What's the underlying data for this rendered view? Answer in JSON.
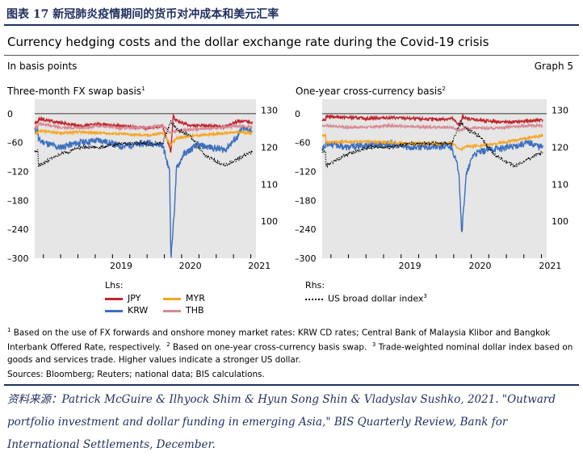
{
  "header": {
    "cn_title": "图表 17   新冠肺炎疫情期间的货币对冲成本和美元汇率",
    "main_title": "Currency hedging costs and the dollar exchange rate during the Covid-19 crisis",
    "units": "In basis points",
    "graph_no": "Graph 5"
  },
  "colors": {
    "JPY": "#c0262d",
    "KRW": "#3c6fbf",
    "MYR": "#f5a623",
    "THB": "#d88a96",
    "USD": "#000000",
    "panel_bg": "#e6e6e6",
    "title_navy": "#1f2f5e"
  },
  "chart_data": [
    {
      "type": "line",
      "title": "Three-month FX swap basis",
      "title_sup": "1",
      "x_axis": {
        "tick_labels": [
          "2019",
          "2020",
          "2021"
        ],
        "range": [
          "2018-03",
          "2021-06"
        ]
      },
      "y_left": {
        "ticks": [
          0,
          -60,
          -120,
          -180,
          -240,
          -300
        ],
        "tick_labels": [
          "0",
          "–60",
          "–120",
          "–180",
          "–240",
          "–300"
        ],
        "range": [
          -300,
          30
        ]
      },
      "y_right": {
        "ticks": [
          130,
          120,
          110,
          100
        ],
        "tick_labels": [
          "130",
          "120",
          "110",
          "100"
        ],
        "range": [
          90,
          133
        ]
      },
      "series": [
        {
          "name": "KRW",
          "axis": "left",
          "color": "#3c6fbf",
          "anchors": [
            [
              2018.3,
              -55
            ],
            [
              2018.6,
              -70
            ],
            [
              2018.9,
              -60
            ],
            [
              2019.2,
              -55
            ],
            [
              2019.5,
              -68
            ],
            [
              2019.9,
              -60
            ],
            [
              2020.1,
              -65
            ],
            [
              2020.2,
              -120
            ],
            [
              2020.22,
              -300
            ],
            [
              2020.27,
              -200
            ],
            [
              2020.3,
              -115
            ],
            [
              2020.4,
              -85
            ],
            [
              2020.6,
              -65
            ],
            [
              2020.8,
              -70
            ],
            [
              2021.0,
              -75
            ],
            [
              2021.2,
              -45
            ],
            [
              2021.25,
              -30
            ],
            [
              2021.4,
              -35
            ]
          ]
        },
        {
          "name": "JPY",
          "axis": "left",
          "color": "#c0262d",
          "anchors": [
            [
              2018.3,
              -10
            ],
            [
              2018.6,
              -18
            ],
            [
              2018.9,
              -25
            ],
            [
              2019.2,
              -22
            ],
            [
              2019.5,
              -25
            ],
            [
              2019.9,
              -30
            ],
            [
              2020.1,
              -25
            ],
            [
              2020.22,
              -80
            ],
            [
              2020.25,
              -5
            ],
            [
              2020.3,
              -15
            ],
            [
              2020.5,
              -25
            ],
            [
              2020.8,
              -25
            ],
            [
              2021.0,
              -28
            ],
            [
              2021.2,
              -15
            ],
            [
              2021.4,
              -18
            ]
          ]
        },
        {
          "name": "MYR",
          "axis": "left",
          "color": "#f5a623",
          "anchors": [
            [
              2018.3,
              -35
            ],
            [
              2018.6,
              -40
            ],
            [
              2018.9,
              -38
            ],
            [
              2019.2,
              -40
            ],
            [
              2019.5,
              -42
            ],
            [
              2019.9,
              -45
            ],
            [
              2020.1,
              -40
            ],
            [
              2020.22,
              -65
            ],
            [
              2020.3,
              -50
            ],
            [
              2020.6,
              -45
            ],
            [
              2020.9,
              -42
            ],
            [
              2021.2,
              -38
            ],
            [
              2021.4,
              -40
            ]
          ]
        },
        {
          "name": "THB",
          "axis": "left",
          "color": "#d88a96",
          "anchors": [
            [
              2018.3,
              -20
            ],
            [
              2018.6,
              -28
            ],
            [
              2018.9,
              -30
            ],
            [
              2019.2,
              -25
            ],
            [
              2019.5,
              -30
            ],
            [
              2019.9,
              -28
            ],
            [
              2020.1,
              -25
            ],
            [
              2020.22,
              -40
            ],
            [
              2020.3,
              -35
            ],
            [
              2020.6,
              -32
            ],
            [
              2020.9,
              -30
            ],
            [
              2021.2,
              -25
            ],
            [
              2021.4,
              -28
            ]
          ]
        },
        {
          "name": "US broad dollar index",
          "axis": "right",
          "color": "#000000",
          "dotted": true,
          "anchors": [
            [
              2018.3,
              115
            ],
            [
              2018.6,
              118
            ],
            [
              2018.9,
              120
            ],
            [
              2019.2,
              120
            ],
            [
              2019.5,
              121
            ],
            [
              2019.9,
              121
            ],
            [
              2020.1,
              121
            ],
            [
              2020.22,
              127
            ],
            [
              2020.3,
              125
            ],
            [
              2020.5,
              123
            ],
            [
              2020.7,
              118
            ],
            [
              2020.9,
              116
            ],
            [
              2021.0,
              115
            ],
            [
              2021.2,
              117
            ],
            [
              2021.4,
              119
            ]
          ]
        }
      ]
    },
    {
      "type": "line",
      "title": "One-year cross-currency basis",
      "title_sup": "2",
      "x_axis": {
        "tick_labels": [
          "2019",
          "2020",
          "2021"
        ],
        "range": [
          "2018-03",
          "2021-06"
        ]
      },
      "y_left": {
        "ticks": [
          0,
          -60,
          -120,
          -180,
          -240,
          -300
        ],
        "tick_labels": [
          "0",
          "–60",
          "–120",
          "–180",
          "–240",
          "–300"
        ],
        "range": [
          -300,
          30
        ]
      },
      "y_right": {
        "ticks": [
          130,
          120,
          110,
          100
        ],
        "tick_labels": [
          "130",
          "120",
          "110",
          "100"
        ],
        "range": [
          90,
          133
        ]
      },
      "series": [
        {
          "name": "KRW",
          "axis": "left",
          "color": "#3c6fbf",
          "anchors": [
            [
              2018.3,
              -60
            ],
            [
              2018.6,
              -70
            ],
            [
              2018.9,
              -65
            ],
            [
              2019.2,
              -62
            ],
            [
              2019.5,
              -70
            ],
            [
              2019.9,
              -68
            ],
            [
              2020.1,
              -70
            ],
            [
              2020.2,
              -120
            ],
            [
              2020.24,
              -250
            ],
            [
              2020.3,
              -130
            ],
            [
              2020.4,
              -85
            ],
            [
              2020.6,
              -75
            ],
            [
              2020.9,
              -70
            ],
            [
              2021.2,
              -60
            ],
            [
              2021.4,
              -70
            ]
          ]
        },
        {
          "name": "JPY",
          "axis": "left",
          "color": "#c0262d",
          "anchors": [
            [
              2018.3,
              -5
            ],
            [
              2018.6,
              -8
            ],
            [
              2018.9,
              -10
            ],
            [
              2019.2,
              -8
            ],
            [
              2019.5,
              -10
            ],
            [
              2019.9,
              -12
            ],
            [
              2020.1,
              -10
            ],
            [
              2020.22,
              -25
            ],
            [
              2020.25,
              -5
            ],
            [
              2020.3,
              -10
            ],
            [
              2020.6,
              -15
            ],
            [
              2020.9,
              -18
            ],
            [
              2021.2,
              -15
            ],
            [
              2021.4,
              -12
            ]
          ]
        },
        {
          "name": "MYR",
          "axis": "left",
          "color": "#f5a623",
          "anchors": [
            [
              2018.3,
              -60
            ],
            [
              2018.6,
              -58
            ],
            [
              2018.9,
              -58
            ],
            [
              2019.2,
              -60
            ],
            [
              2019.5,
              -62
            ],
            [
              2019.9,
              -62
            ],
            [
              2020.1,
              -60
            ],
            [
              2020.22,
              -75
            ],
            [
              2020.3,
              -68
            ],
            [
              2020.6,
              -65
            ],
            [
              2020.9,
              -58
            ],
            [
              2021.2,
              -50
            ],
            [
              2021.4,
              -45
            ]
          ]
        },
        {
          "name": "THB",
          "axis": "left",
          "color": "#d88a96",
          "anchors": [
            [
              2018.3,
              -25
            ],
            [
              2018.6,
              -28
            ],
            [
              2018.9,
              -28
            ],
            [
              2019.2,
              -25
            ],
            [
              2019.5,
              -27
            ],
            [
              2019.9,
              -28
            ],
            [
              2020.1,
              -28
            ],
            [
              2020.22,
              -35
            ],
            [
              2020.3,
              -30
            ],
            [
              2020.6,
              -30
            ],
            [
              2020.9,
              -28
            ],
            [
              2021.2,
              -25
            ],
            [
              2021.4,
              -25
            ]
          ]
        },
        {
          "name": "US broad dollar index",
          "axis": "right",
          "color": "#000000",
          "dotted": true,
          "anchors": [
            [
              2018.3,
              115
            ],
            [
              2018.6,
              118
            ],
            [
              2018.9,
              120
            ],
            [
              2019.2,
              120
            ],
            [
              2019.5,
              121
            ],
            [
              2019.9,
              121
            ],
            [
              2020.1,
              121
            ],
            [
              2020.22,
              127
            ],
            [
              2020.3,
              125
            ],
            [
              2020.5,
              123
            ],
            [
              2020.7,
              118
            ],
            [
              2020.9,
              116
            ],
            [
              2021.0,
              115
            ],
            [
              2021.2,
              117
            ],
            [
              2021.4,
              119
            ]
          ]
        }
      ]
    }
  ],
  "legend": {
    "lhs_label": "Lhs:",
    "rhs_label": "Rhs:",
    "lhs_items": [
      {
        "name": "JPY",
        "color": "#c0262d"
      },
      {
        "name": "MYR",
        "color": "#f5a623"
      },
      {
        "name": "KRW",
        "color": "#3c6fbf"
      },
      {
        "name": "THB",
        "color": "#d88a96"
      }
    ],
    "rhs_item": "US broad dollar index",
    "rhs_sup": "3"
  },
  "footnotes": {
    "n1": "1",
    "t1": " Based on the use of FX forwards and onshore money market rates: KRW CD rates; Central Bank of Malaysia Klibor and Bangkok Interbank Offered Rate, respectively.",
    "n2": "2",
    "t2": " Based on one-year cross-currency basis swap.",
    "n3": "3",
    "t3": " Trade-weighted nominal dollar index based on goods and services trade. Higher values indicate a stronger US dollar."
  },
  "sources": "Sources: Bloomberg; Reuters; national data; BIS calculations.",
  "citation": "资料来源：Patrick McGuire & Ilhyock Shim & Hyun Song Shin & Vladyslav Sushko, 2021. \"Outward portfolio investment and dollar funding in emerging Asia,\" BIS Quarterly Review, Bank for International Settlements, December."
}
